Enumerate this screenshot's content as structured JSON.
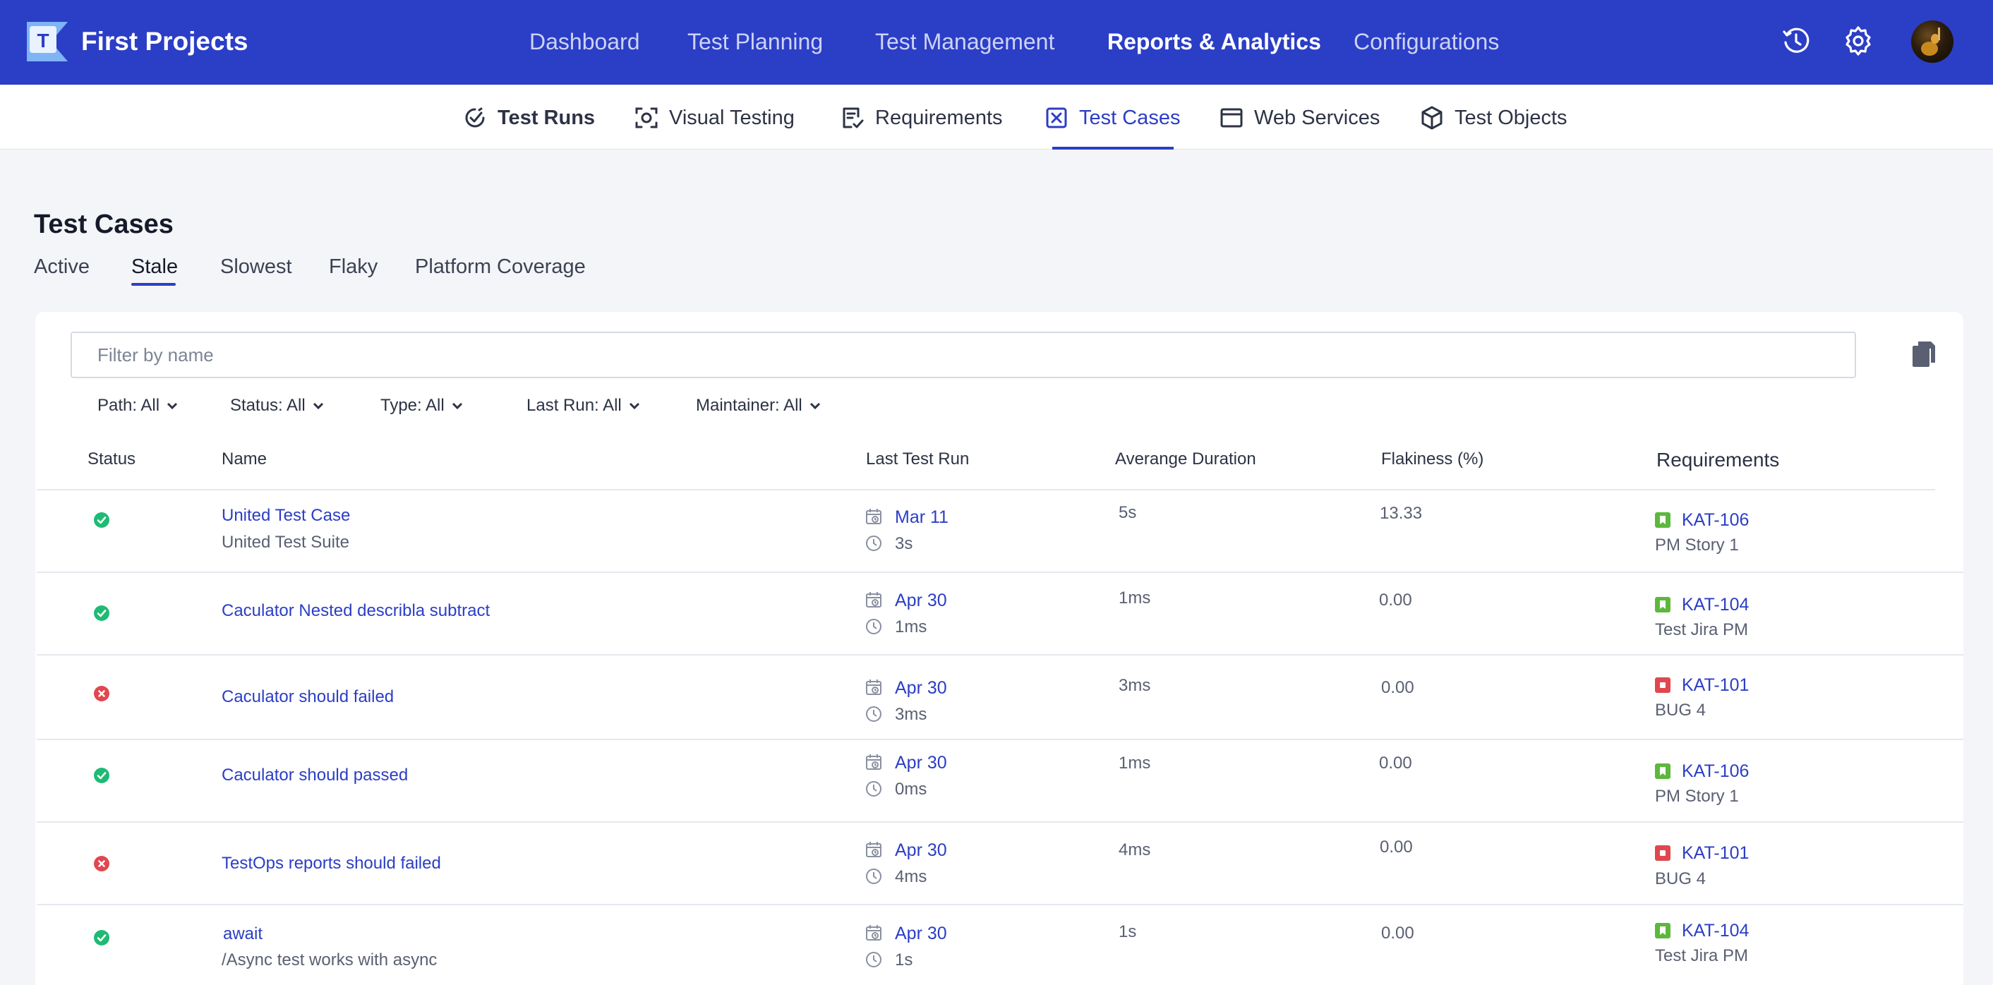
{
  "app": {
    "title": "First Projects"
  },
  "topnav": [
    "Dashboard",
    "Test Planning",
    "Test Management",
    "Reports & Analytics",
    "Configurations"
  ],
  "topnav_active": "Reports & Analytics",
  "subnav": [
    "Test Runs",
    "Visual Testing",
    "Requirements",
    "Test Cases",
    "Web Services",
    "Test Objects"
  ],
  "subnav_active": "Test Cases",
  "page": {
    "title": "Test Cases",
    "tabs": [
      "Active",
      "Stale",
      "Slowest",
      "Flaky",
      "Platform Coverage"
    ],
    "active_tab": "Stale"
  },
  "filter": {
    "placeholder": "Filter by name",
    "value": ""
  },
  "dropdowns": [
    "Path: All",
    "Status: All",
    "Type: All",
    "Last Run: All",
    "Maintainer: All"
  ],
  "columns": [
    "Status",
    "Name",
    "Last Test Run",
    "Averange Duration",
    "Flakiness (%)",
    "Requirements"
  ],
  "rows": [
    {
      "status": "passed",
      "name": "United Test Case",
      "suite": "United Test Suite",
      "date": "Mar 11",
      "duration": "3s",
      "avg": "5s",
      "flakiness": "13.33",
      "req_key": "KAT-106",
      "req_type": "story",
      "req_title": "PM Story 1"
    },
    {
      "status": "passed",
      "name": "Caculator Nested describla subtract",
      "suite": "",
      "date": "Apr 30",
      "duration": "1ms",
      "avg": "1ms",
      "flakiness": "0.00",
      "req_key": "KAT-104",
      "req_type": "story",
      "req_title": "Test Jira PM"
    },
    {
      "status": "failed",
      "name": "Caculator should failed",
      "suite": "",
      "date": "Apr 30",
      "duration": "3ms",
      "avg": "3ms",
      "flakiness": "0.00",
      "req_key": "KAT-101",
      "req_type": "bug",
      "req_title": "BUG 4"
    },
    {
      "status": "passed",
      "name": "Caculator should passed",
      "suite": "",
      "date": "Apr 30",
      "duration": "0ms",
      "avg": "1ms",
      "flakiness": "0.00",
      "req_key": "KAT-106",
      "req_type": "story",
      "req_title": "PM Story 1"
    },
    {
      "status": "failed",
      "name": "TestOps reports should failed",
      "suite": "",
      "date": "Apr 30",
      "duration": "4ms",
      "avg": "4ms",
      "flakiness": "0.00",
      "req_key": "KAT-101",
      "req_type": "bug",
      "req_title": "BUG 4"
    },
    {
      "status": "passed",
      "name": "await",
      "suite": "/Async test works with async",
      "date": "Apr 30",
      "duration": "1s",
      "avg": "1s",
      "flakiness": "0.00",
      "req_key": "KAT-104",
      "req_type": "story",
      "req_title": "Test Jira PM"
    }
  ],
  "colors": {
    "primary": "#2b3ec6",
    "passed": "#1fba74",
    "failed": "#e0474f",
    "story": "#5cb83c",
    "bug": "#e0474f"
  }
}
